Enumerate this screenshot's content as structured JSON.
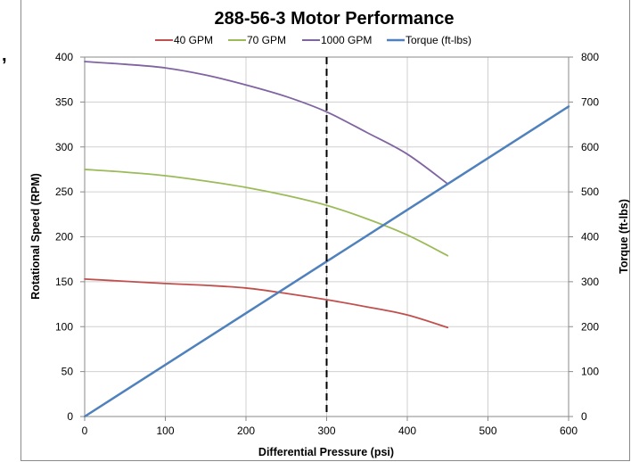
{
  "chart_data": {
    "type": "line",
    "title": "288-56-3 Motor Performance",
    "xlabel": "Differential Pressure (psi)",
    "ylabel": "Rotational Speed (RPM)",
    "y2label": "Torque (ft-lbs)",
    "xlim": [
      0,
      600
    ],
    "ylim": [
      0,
      400
    ],
    "y2lim": [
      0,
      800
    ],
    "x_ticks": [
      "0",
      "100",
      "200",
      "300",
      "400",
      "500",
      "600"
    ],
    "y_ticks": [
      "0",
      "50",
      "100",
      "150",
      "200",
      "250",
      "300",
      "350",
      "400"
    ],
    "y2_ticks": [
      "0",
      "100",
      "200",
      "300",
      "400",
      "500",
      "600",
      "700",
      "800"
    ],
    "grid": true,
    "legend_position": "top",
    "series": [
      {
        "name": "40 GPM",
        "color": "#c0504d",
        "axis": "left",
        "x": [
          0,
          50,
          100,
          150,
          200,
          250,
          300,
          350,
          400,
          450
        ],
        "y": [
          153,
          150.5,
          148,
          146,
          143,
          137,
          130,
          122,
          113,
          99
        ]
      },
      {
        "name": "70 GPM",
        "color": "#9bbb59",
        "axis": "left",
        "x": [
          0,
          50,
          100,
          150,
          200,
          250,
          300,
          350,
          400,
          450
        ],
        "y": [
          275,
          272,
          268,
          262,
          255,
          246,
          235,
          220,
          202,
          179
        ]
      },
      {
        "name": "1000 GPM",
        "color": "#8064a2",
        "axis": "left",
        "x": [
          0,
          50,
          100,
          150,
          200,
          250,
          300,
          350,
          400,
          450
        ],
        "y": [
          395,
          392,
          388,
          380,
          369,
          356,
          339,
          316,
          292,
          259
        ]
      },
      {
        "name": "Torque (ft-lbs)",
        "color": "#4f81bd",
        "axis": "right",
        "x": [
          0,
          600
        ],
        "y": [
          0,
          690
        ]
      }
    ],
    "reference_lines": [
      {
        "orientation": "vertical",
        "x": 300,
        "style": "dashed",
        "color": "#000000"
      }
    ]
  },
  "stray_mark": ","
}
